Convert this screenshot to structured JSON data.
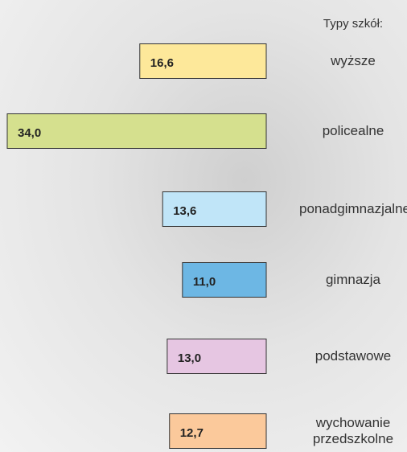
{
  "chart_data": {
    "type": "bar",
    "orientation": "horizontal",
    "legend_title": "Typy szkół:",
    "categories": [
      "wyższe",
      "policealne",
      "ponadgimnazjalne",
      "gimnazja",
      "podstawowe",
      "wychowanie przedszkolne"
    ],
    "values": [
      16.6,
      34.0,
      13.6,
      11.0,
      13.0,
      12.7
    ],
    "value_labels": [
      "16,6",
      "34,0",
      "13,6",
      "11,0",
      "13,0",
      "12,7"
    ],
    "colors": [
      "#fde89a",
      "#d5e08e",
      "#c0e5f8",
      "#6db7e4",
      "#e6c6e2",
      "#fbc99b"
    ]
  }
}
